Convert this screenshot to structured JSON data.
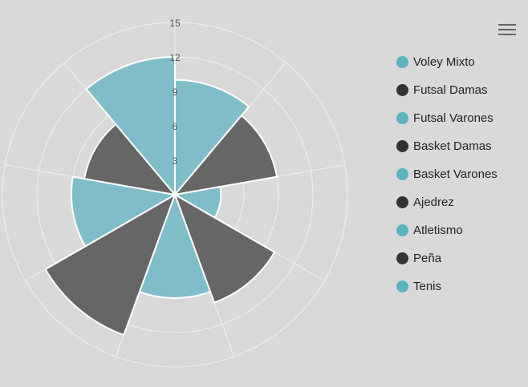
{
  "colors": {
    "teal": "#7fbec9",
    "dark": "#666666",
    "legend_teal": "#5ab3bf",
    "legend_dark": "#333333",
    "grid": "#efefef"
  },
  "menu": {
    "icon": "hamburger-menu-icon"
  },
  "chart_data": {
    "type": "polar-area",
    "title": "",
    "radial_axis": {
      "min": 0,
      "max": 15,
      "tick_labels": [
        "3",
        "6",
        "9",
        "12",
        "15"
      ]
    },
    "grid": true,
    "legend_placement": "right",
    "categories": [
      "Voley Mixto",
      "Futsal Damas",
      "Futsal Varones",
      "Basket Damas",
      "Basket Varones",
      "Ajedrez",
      "Atletismo",
      "Peña",
      "Tenis"
    ],
    "values": [
      10,
      9,
      4,
      10,
      9,
      13,
      9,
      8,
      12
    ],
    "colors": [
      "teal",
      "dark",
      "teal",
      "dark",
      "teal",
      "dark",
      "teal",
      "dark",
      "teal"
    ]
  }
}
